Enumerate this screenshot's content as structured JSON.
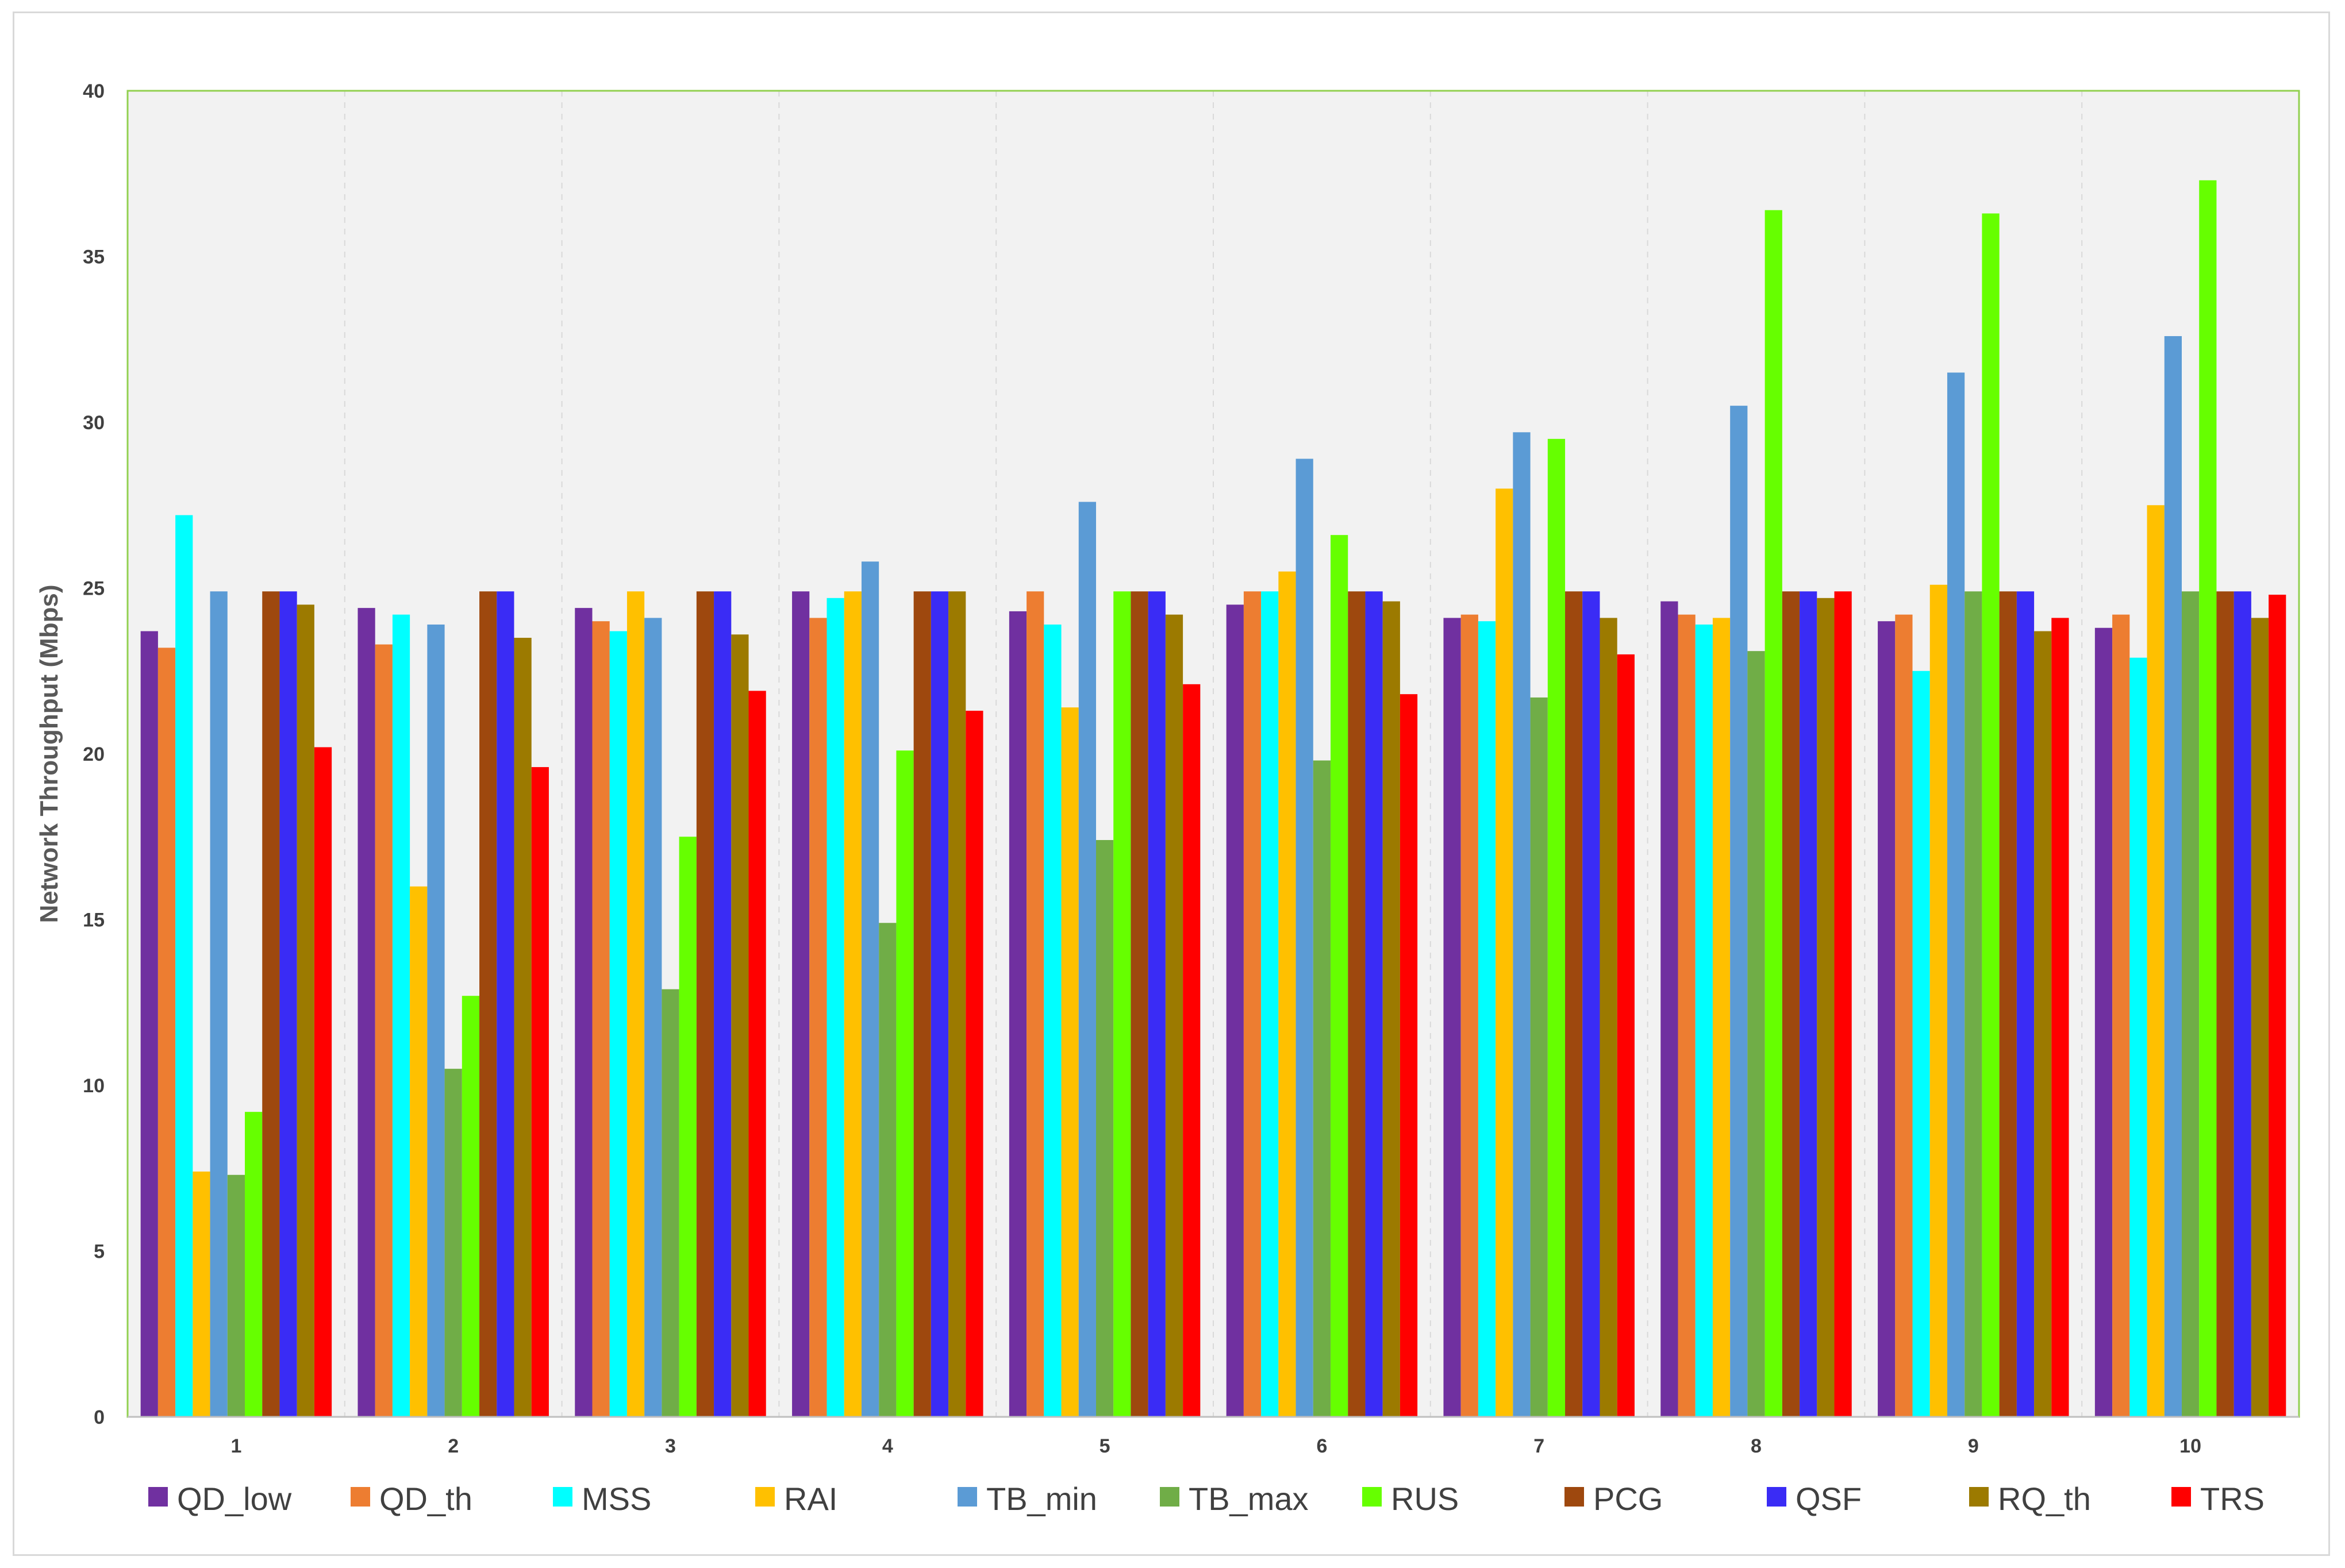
{
  "chart_data": {
    "type": "bar",
    "title": "",
    "xlabel": "",
    "ylabel": "Network Throughput (Mbps)",
    "ylim": [
      0,
      40
    ],
    "yticks": [
      0,
      5,
      10,
      15,
      20,
      25,
      30,
      35,
      40
    ],
    "categories": [
      "1",
      "2",
      "3",
      "4",
      "5",
      "6",
      "7",
      "8",
      "9",
      "10"
    ],
    "grid": true,
    "legend_position": "bottom",
    "series": [
      {
        "name": "QD_low",
        "color": "#7030a0",
        "values": [
          23.7,
          24.4,
          24.4,
          24.9,
          24.3,
          24.5,
          24.1,
          24.6,
          24.0,
          23.8
        ]
      },
      {
        "name": "QD_th",
        "color": "#ed7d31",
        "values": [
          23.2,
          23.3,
          24.0,
          24.1,
          24.9,
          24.9,
          24.2,
          24.2,
          24.2,
          24.2
        ]
      },
      {
        "name": "MSS",
        "color": "#00ffff",
        "values": [
          27.2,
          24.2,
          23.7,
          24.7,
          23.9,
          24.9,
          24.0,
          23.9,
          22.5,
          22.9
        ]
      },
      {
        "name": "RAI",
        "color": "#ffc000",
        "values": [
          7.4,
          16.0,
          24.9,
          24.9,
          21.4,
          25.5,
          28.0,
          24.1,
          25.1,
          27.5
        ]
      },
      {
        "name": "TB_min",
        "color": "#5b9bd5",
        "values": [
          24.9,
          23.9,
          24.1,
          25.8,
          27.6,
          28.9,
          29.7,
          30.5,
          31.5,
          32.6
        ]
      },
      {
        "name": "TB_max",
        "color": "#70ad47",
        "values": [
          7.3,
          10.5,
          12.9,
          14.9,
          17.4,
          19.8,
          21.7,
          23.1,
          24.9,
          24.9
        ]
      },
      {
        "name": "RUS",
        "color": "#66ff00",
        "values": [
          9.2,
          12.7,
          17.5,
          20.1,
          24.9,
          26.6,
          29.5,
          36.4,
          36.3,
          37.3
        ]
      },
      {
        "name": "PCG",
        "color": "#9e480e",
        "values": [
          24.9,
          24.9,
          24.9,
          24.9,
          24.9,
          24.9,
          24.9,
          24.9,
          24.9,
          24.9
        ]
      },
      {
        "name": "QSF",
        "color": "#3a2cf5",
        "values": [
          24.9,
          24.9,
          24.9,
          24.9,
          24.9,
          24.9,
          24.9,
          24.9,
          24.9,
          24.9
        ]
      },
      {
        "name": "RQ_th",
        "color": "#9c7a00",
        "values": [
          24.5,
          23.5,
          23.6,
          24.9,
          24.2,
          24.6,
          24.1,
          24.7,
          23.7,
          24.1
        ]
      },
      {
        "name": "TRS",
        "color": "#ff0000",
        "values": [
          20.2,
          19.6,
          21.9,
          21.3,
          22.1,
          21.8,
          23.0,
          24.9,
          24.1,
          24.8
        ]
      }
    ]
  }
}
